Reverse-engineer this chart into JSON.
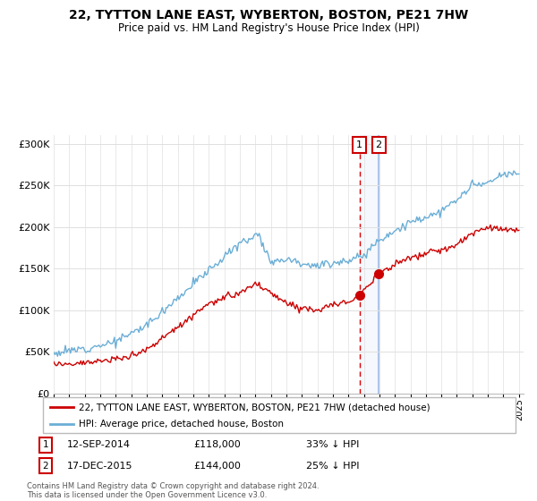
{
  "title": "22, TYTTON LANE EAST, WYBERTON, BOSTON, PE21 7HW",
  "subtitle": "Price paid vs. HM Land Registry's House Price Index (HPI)",
  "legend_line1": "22, TYTTON LANE EAST, WYBERTON, BOSTON, PE21 7HW (detached house)",
  "legend_line2": "HPI: Average price, detached house, Boston",
  "footer1": "Contains HM Land Registry data © Crown copyright and database right 2024.",
  "footer2": "This data is licensed under the Open Government Licence v3.0.",
  "transaction1_date": "12-SEP-2014",
  "transaction1_price": "£118,000",
  "transaction1_hpi": "33% ↓ HPI",
  "transaction2_date": "17-DEC-2015",
  "transaction2_price": "£144,000",
  "transaction2_hpi": "25% ↓ HPI",
  "hpi_color": "#6baed6",
  "price_color": "#cc0000",
  "vline1_color": "#dd0000",
  "vline2_color": "#aec6e8",
  "ylim": [
    0,
    310000
  ],
  "yticks": [
    0,
    50000,
    100000,
    150000,
    200000,
    250000,
    300000
  ],
  "ytick_labels": [
    "£0",
    "£50K",
    "£100K",
    "£150K",
    "£200K",
    "£250K",
    "£300K"
  ],
  "background_color": "#ffffff",
  "grid_color": "#e0e0e0",
  "t1_year": 2014.71,
  "t2_year": 2015.96,
  "t1_price": 118000,
  "t2_price": 144000
}
